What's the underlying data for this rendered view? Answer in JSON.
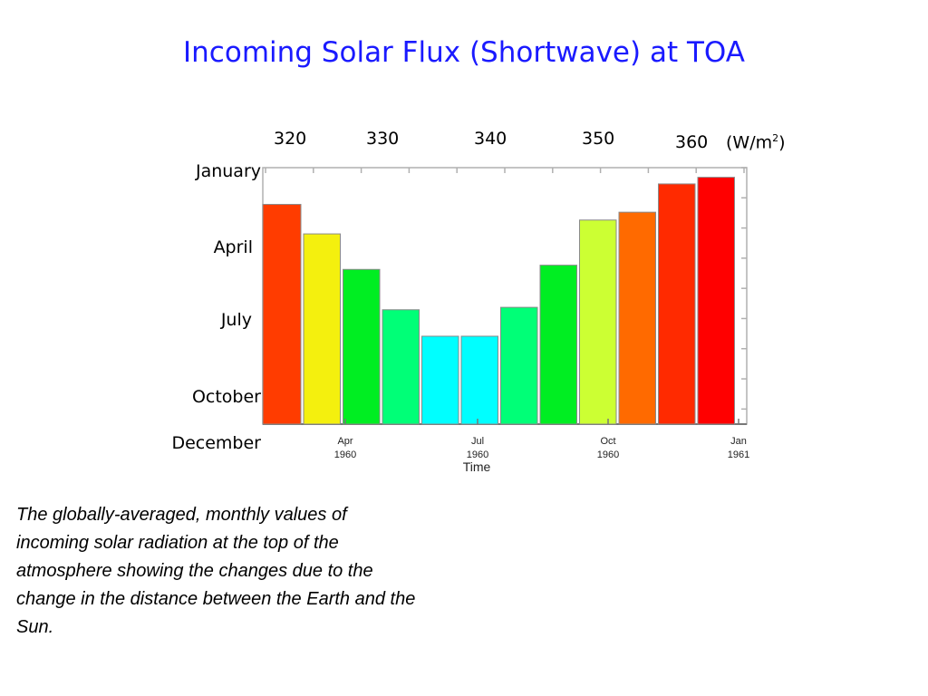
{
  "title": "Incoming Solar Flux (Shortwave) at TOA",
  "caption": "The globally-averaged, monthly values of incoming solar radiation at the top of the atmosphere showing the changes due to the change in the distance between the Earth and the Sun.",
  "top_scale": {
    "ticks": [
      "320",
      "330",
      "340",
      "350",
      "360"
    ],
    "unit_prefix": "(W/m",
    "unit_sup": "2",
    "unit_suffix": ")"
  },
  "month_labels": [
    "January",
    "April",
    "July",
    "October",
    "December"
  ],
  "time_axis": {
    "label": "Time",
    "ticks": [
      {
        "month": "Apr",
        "year": "1960"
      },
      {
        "month": "Jul",
        "year": "1960"
      },
      {
        "month": "Oct",
        "year": "1960"
      },
      {
        "month": "Jan",
        "year": "1961"
      }
    ]
  },
  "chart_data": {
    "type": "bar",
    "title": "Incoming Solar Flux (Shortwave) at TOA",
    "categories": [
      "Jan 1960",
      "Feb 1960",
      "Mar 1960",
      "Apr 1960",
      "May 1960",
      "Jun 1960",
      "Jul 1960",
      "Aug 1960",
      "Sep 1960",
      "Oct 1960",
      "Nov 1960",
      "Dec 1960"
    ],
    "values": [
      352.5,
      347.6,
      341.7,
      335.0,
      330.6,
      330.6,
      335.4,
      342.4,
      349.9,
      351.2,
      355.9,
      357.0
    ],
    "ylim": [
      316,
      358.6
    ],
    "bar_colors": [
      "#ff3c00",
      "#f4f00e",
      "#00ee22",
      "#00ff77",
      "#00ffff",
      "#00ffff",
      "#00ff77",
      "#00ee22",
      "#ccff33",
      "#ff6a00",
      "#ff2a00",
      "#ff0000"
    ],
    "xlabel": "Time",
    "ylabel": "",
    "grid": false
  }
}
